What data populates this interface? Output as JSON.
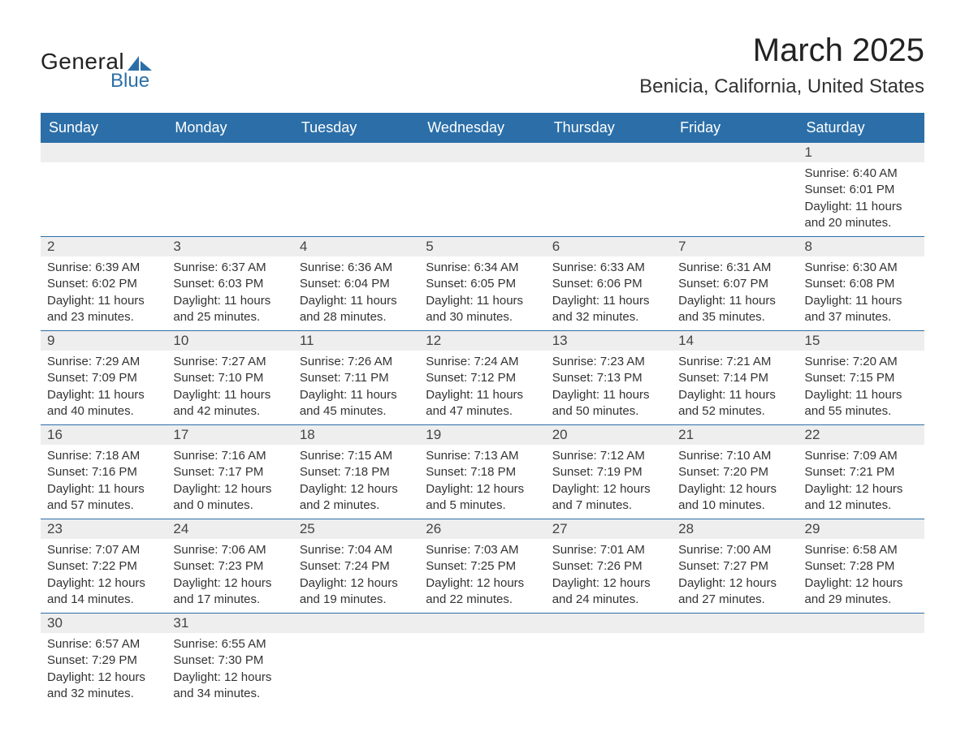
{
  "logo": {
    "general": "General",
    "blue": "Blue",
    "icon_color": "#2c6fa8"
  },
  "header": {
    "month_title": "March 2025",
    "location": "Benicia, California, United States"
  },
  "styling": {
    "header_bg": "#2c6fa8",
    "header_fg": "#ffffff",
    "daynum_bg": "#eeeeee",
    "row_divider": "#2c6fa8",
    "body_bg": "#ffffff",
    "text_color": "#333333",
    "month_title_fontsize": 40,
    "location_fontsize": 24,
    "dayheader_fontsize": 18,
    "cell_fontsize": 15
  },
  "day_headers": [
    "Sunday",
    "Monday",
    "Tuesday",
    "Wednesday",
    "Thursday",
    "Friday",
    "Saturday"
  ],
  "weeks": [
    [
      null,
      null,
      null,
      null,
      null,
      null,
      {
        "n": "1",
        "sunrise": "6:40 AM",
        "sunset": "6:01 PM",
        "dl1": "11 hours",
        "dl2": "and 20 minutes."
      }
    ],
    [
      {
        "n": "2",
        "sunrise": "6:39 AM",
        "sunset": "6:02 PM",
        "dl1": "11 hours",
        "dl2": "and 23 minutes."
      },
      {
        "n": "3",
        "sunrise": "6:37 AM",
        "sunset": "6:03 PM",
        "dl1": "11 hours",
        "dl2": "and 25 minutes."
      },
      {
        "n": "4",
        "sunrise": "6:36 AM",
        "sunset": "6:04 PM",
        "dl1": "11 hours",
        "dl2": "and 28 minutes."
      },
      {
        "n": "5",
        "sunrise": "6:34 AM",
        "sunset": "6:05 PM",
        "dl1": "11 hours",
        "dl2": "and 30 minutes."
      },
      {
        "n": "6",
        "sunrise": "6:33 AM",
        "sunset": "6:06 PM",
        "dl1": "11 hours",
        "dl2": "and 32 minutes."
      },
      {
        "n": "7",
        "sunrise": "6:31 AM",
        "sunset": "6:07 PM",
        "dl1": "11 hours",
        "dl2": "and 35 minutes."
      },
      {
        "n": "8",
        "sunrise": "6:30 AM",
        "sunset": "6:08 PM",
        "dl1": "11 hours",
        "dl2": "and 37 minutes."
      }
    ],
    [
      {
        "n": "9",
        "sunrise": "7:29 AM",
        "sunset": "7:09 PM",
        "dl1": "11 hours",
        "dl2": "and 40 minutes."
      },
      {
        "n": "10",
        "sunrise": "7:27 AM",
        "sunset": "7:10 PM",
        "dl1": "11 hours",
        "dl2": "and 42 minutes."
      },
      {
        "n": "11",
        "sunrise": "7:26 AM",
        "sunset": "7:11 PM",
        "dl1": "11 hours",
        "dl2": "and 45 minutes."
      },
      {
        "n": "12",
        "sunrise": "7:24 AM",
        "sunset": "7:12 PM",
        "dl1": "11 hours",
        "dl2": "and 47 minutes."
      },
      {
        "n": "13",
        "sunrise": "7:23 AM",
        "sunset": "7:13 PM",
        "dl1": "11 hours",
        "dl2": "and 50 minutes."
      },
      {
        "n": "14",
        "sunrise": "7:21 AM",
        "sunset": "7:14 PM",
        "dl1": "11 hours",
        "dl2": "and 52 minutes."
      },
      {
        "n": "15",
        "sunrise": "7:20 AM",
        "sunset": "7:15 PM",
        "dl1": "11 hours",
        "dl2": "and 55 minutes."
      }
    ],
    [
      {
        "n": "16",
        "sunrise": "7:18 AM",
        "sunset": "7:16 PM",
        "dl1": "11 hours",
        "dl2": "and 57 minutes."
      },
      {
        "n": "17",
        "sunrise": "7:16 AM",
        "sunset": "7:17 PM",
        "dl1": "12 hours",
        "dl2": "and 0 minutes."
      },
      {
        "n": "18",
        "sunrise": "7:15 AM",
        "sunset": "7:18 PM",
        "dl1": "12 hours",
        "dl2": "and 2 minutes."
      },
      {
        "n": "19",
        "sunrise": "7:13 AM",
        "sunset": "7:18 PM",
        "dl1": "12 hours",
        "dl2": "and 5 minutes."
      },
      {
        "n": "20",
        "sunrise": "7:12 AM",
        "sunset": "7:19 PM",
        "dl1": "12 hours",
        "dl2": "and 7 minutes."
      },
      {
        "n": "21",
        "sunrise": "7:10 AM",
        "sunset": "7:20 PM",
        "dl1": "12 hours",
        "dl2": "and 10 minutes."
      },
      {
        "n": "22",
        "sunrise": "7:09 AM",
        "sunset": "7:21 PM",
        "dl1": "12 hours",
        "dl2": "and 12 minutes."
      }
    ],
    [
      {
        "n": "23",
        "sunrise": "7:07 AM",
        "sunset": "7:22 PM",
        "dl1": "12 hours",
        "dl2": "and 14 minutes."
      },
      {
        "n": "24",
        "sunrise": "7:06 AM",
        "sunset": "7:23 PM",
        "dl1": "12 hours",
        "dl2": "and 17 minutes."
      },
      {
        "n": "25",
        "sunrise": "7:04 AM",
        "sunset": "7:24 PM",
        "dl1": "12 hours",
        "dl2": "and 19 minutes."
      },
      {
        "n": "26",
        "sunrise": "7:03 AM",
        "sunset": "7:25 PM",
        "dl1": "12 hours",
        "dl2": "and 22 minutes."
      },
      {
        "n": "27",
        "sunrise": "7:01 AM",
        "sunset": "7:26 PM",
        "dl1": "12 hours",
        "dl2": "and 24 minutes."
      },
      {
        "n": "28",
        "sunrise": "7:00 AM",
        "sunset": "7:27 PM",
        "dl1": "12 hours",
        "dl2": "and 27 minutes."
      },
      {
        "n": "29",
        "sunrise": "6:58 AM",
        "sunset": "7:28 PM",
        "dl1": "12 hours",
        "dl2": "and 29 minutes."
      }
    ],
    [
      {
        "n": "30",
        "sunrise": "6:57 AM",
        "sunset": "7:29 PM",
        "dl1": "12 hours",
        "dl2": "and 32 minutes."
      },
      {
        "n": "31",
        "sunrise": "6:55 AM",
        "sunset": "7:30 PM",
        "dl1": "12 hours",
        "dl2": "and 34 minutes."
      },
      null,
      null,
      null,
      null,
      null
    ]
  ],
  "labels": {
    "sunrise_prefix": "Sunrise: ",
    "sunset_prefix": "Sunset: ",
    "daylight_prefix": "Daylight: "
  }
}
